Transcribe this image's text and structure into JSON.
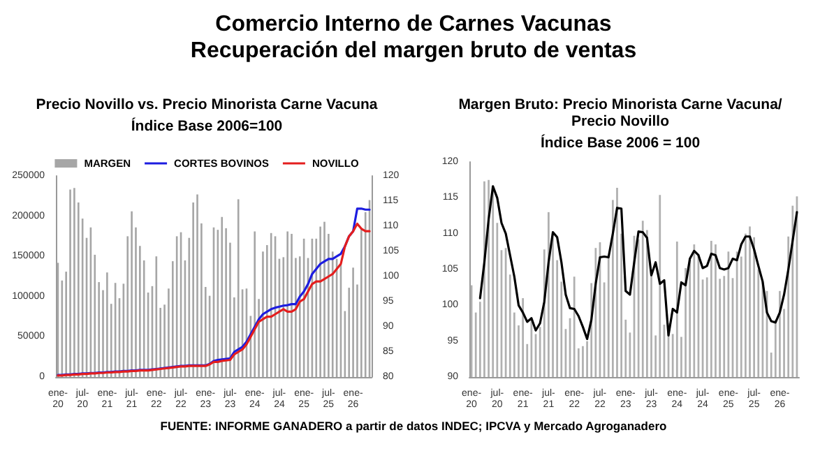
{
  "chart_data": [
    {
      "type": "bar",
      "title": "Precio Novillo vs. Precio Minorista Carne Vacuna",
      "subtitle": "Índice Base 2006=100",
      "annotations": [
        "Comercio Interno de Carnes Vacunas",
        "Recuperación del margen bruto de ventas"
      ],
      "categories": [
        "ene-20",
        null,
        null,
        null,
        null,
        null,
        "jul-20",
        null,
        null,
        null,
        null,
        null,
        "ene-21",
        null,
        null,
        null,
        null,
        null,
        "jul-21",
        null,
        null,
        null,
        null,
        null,
        "ene-22",
        null,
        null,
        null,
        null,
        null,
        "jul-22",
        null,
        null,
        null,
        null,
        null,
        "ene-23",
        null,
        null,
        null,
        null,
        null,
        "jul-23",
        null,
        null,
        null,
        null,
        null,
        "ene-24",
        null,
        null,
        null,
        null,
        null,
        "jul-24",
        null,
        null,
        null,
        null,
        null,
        "ene-25",
        null,
        null,
        null,
        null,
        null,
        "jul-25",
        null,
        null,
        null,
        null,
        null,
        "ene-26",
        null,
        null,
        null,
        null
      ],
      "series": [
        {
          "name": "MARGEN",
          "color": "#a6a6a6",
          "values": [
            142000,
            120000,
            131000,
            233000,
            235000,
            217000,
            197000,
            173000,
            186000,
            152000,
            118000,
            108000,
            130000,
            91000,
            117000,
            98000,
            116000,
            175000,
            206000,
            186000,
            163000,
            145000,
            105000,
            113000,
            150000,
            86000,
            90000,
            110000,
            144000,
            175000,
            180000,
            145000,
            173000,
            217000,
            227000,
            191000,
            112000,
            101000,
            186000,
            183000,
            199000,
            185000,
            167000,
            99000,
            221000,
            109000,
            110000,
            76000,
            181000,
            97000,
            156000,
            164000,
            179000,
            175000,
            147000,
            149000,
            181000,
            178000,
            148000,
            150000,
            172000,
            148000,
            172000,
            172000,
            187000,
            193000,
            178000,
            156000,
            147000,
            140000,
            82000,
            111000,
            136000,
            115000,
            185000,
            205000,
            220000
          ]
        },
        {
          "name": "CORTES BOVINOS",
          "type": "line",
          "axis": "y2",
          "color": "#1c1ce0",
          "values": [
            80.4,
            80.4,
            80.5,
            80.5,
            80.6,
            80.6,
            80.7,
            80.7,
            80.8,
            80.8,
            80.9,
            80.9,
            81.0,
            81.0,
            81.1,
            81.1,
            81.2,
            81.2,
            81.3,
            81.3,
            81.4,
            81.4,
            81.4,
            81.5,
            81.6,
            81.7,
            81.8,
            81.9,
            82.0,
            82.1,
            82.2,
            82.2,
            82.3,
            82.3,
            82.3,
            82.3,
            82.3,
            82.6,
            83.2,
            83.4,
            83.5,
            83.6,
            83.7,
            85.0,
            85.5,
            86.0,
            87.0,
            88.5,
            90.0,
            91.5,
            92.5,
            93.0,
            93.5,
            93.8,
            94.0,
            94.2,
            94.3,
            94.5,
            94.5,
            96.0,
            97.0,
            98.5,
            100.5,
            101.5,
            102.5,
            103.0,
            103.5,
            103.5,
            104.0,
            104.5,
            106.0,
            108.0,
            109.0,
            113.5,
            113.5,
            113.3,
            113.3
          ]
        },
        {
          "name": "NOVILLO",
          "type": "line",
          "axis": "y2",
          "color": "#e41e1e",
          "values": [
            80.3,
            80.3,
            80.4,
            80.4,
            80.5,
            80.5,
            80.6,
            80.6,
            80.7,
            80.7,
            80.8,
            80.8,
            80.9,
            80.9,
            81.0,
            81.0,
            81.1,
            81.1,
            81.2,
            81.2,
            81.3,
            81.3,
            81.3,
            81.4,
            81.5,
            81.6,
            81.7,
            81.8,
            81.9,
            82.0,
            82.1,
            82.1,
            82.2,
            82.2,
            82.2,
            82.2,
            82.2,
            82.5,
            83.0,
            83.0,
            83.2,
            83.3,
            83.4,
            84.5,
            85.0,
            85.5,
            86.5,
            88.0,
            89.5,
            91.0,
            91.5,
            92.0,
            92.0,
            92.5,
            93.0,
            93.5,
            93.0,
            93.0,
            93.5,
            95.0,
            95.5,
            97.0,
            98.5,
            99.0,
            99.0,
            99.5,
            100.0,
            100.5,
            101.5,
            102.5,
            106.0,
            108.0,
            109.0,
            110.5,
            109.5,
            109.0,
            109.0
          ]
        }
      ],
      "ylim": [
        0,
        250000
      ],
      "yticks": [
        0,
        50000,
        100000,
        150000,
        200000,
        250000
      ],
      "y2lim": [
        80,
        120
      ],
      "y2ticks": [
        80,
        85,
        90,
        95,
        100,
        105,
        110,
        115,
        120
      ],
      "legend": "top",
      "grid": false,
      "marker": "none",
      "line_style": "solid"
    },
    {
      "type": "bar",
      "title": "Margen Bruto: Precio Minorista Carne Vacuna/Precio Novillo",
      "subtitle": "Índice Base 2006 = 100",
      "annotations": [
        "FUENTE: INFORME GANADERO a partir de datos INDEC; IPCVA y Mercado Agroganadero"
      ],
      "categories": [
        "ene-20",
        null,
        null,
        null,
        null,
        null,
        "jul-20",
        null,
        null,
        null,
        null,
        null,
        "ene-21",
        null,
        null,
        null,
        null,
        null,
        "jul-21",
        null,
        null,
        null,
        null,
        null,
        "ene-22",
        null,
        null,
        null,
        null,
        null,
        "jul-22",
        null,
        null,
        null,
        null,
        null,
        "ene-23",
        null,
        null,
        null,
        null,
        null,
        "jul-23",
        null,
        null,
        null,
        null,
        null,
        "ene-24",
        null,
        null,
        null,
        null,
        null,
        "jul-24",
        null,
        null,
        null,
        null,
        null,
        "ene-25",
        null,
        null,
        null,
        null,
        null,
        "jul-25",
        null,
        null,
        null,
        null,
        null,
        "ene-26",
        null,
        null,
        null,
        null
      ],
      "series": [
        {
          "color": "#b0b0b0",
          "values": [
            102.8,
            99,
            100.5,
            117.3,
            117.5,
            116.5,
            111.5,
            107.7,
            108,
            104.3,
            99,
            97.2,
            101,
            94.6,
            98,
            96,
            97,
            107.8,
            113,
            110,
            106.3,
            103.3,
            96.7,
            98.2,
            104,
            94,
            94.3,
            95,
            103.1,
            108,
            108.8,
            103.2,
            107,
            114.7,
            116.4,
            110,
            98,
            96.2,
            109.7,
            109.2,
            111.8,
            110.5,
            105,
            95.8,
            115.4,
            97.3,
            97.5,
            96,
            108.9,
            95.6,
            105.2,
            106.3,
            108.5,
            107,
            103.6,
            103.9,
            109,
            108.5,
            103.7,
            104.1,
            107.5,
            103.8,
            107.5,
            106.8,
            110,
            111,
            109.5,
            105,
            103.3,
            102,
            93.4,
            98,
            102,
            99.5,
            109.6,
            113.9,
            115.2
          ]
        },
        {
          "type": "line",
          "color": "#000000",
          "values": [
            null,
            null,
            101,
            106,
            112,
            116.6,
            115,
            111.5,
            110,
            107,
            104,
            100,
            99,
            97.7,
            98.2,
            96.5,
            97.5,
            100.5,
            106,
            110.2,
            109.5,
            106,
            101.5,
            99.6,
            99.5,
            98.5,
            97,
            95.3,
            98,
            103,
            106.7,
            106.8,
            106.7,
            110,
            113.6,
            113.5,
            102,
            101.5,
            106,
            110.3,
            110.2,
            109.4,
            104.2,
            106,
            103,
            103.5,
            95.8,
            99.5,
            99,
            103.2,
            102.8,
            106.5,
            107.6,
            107,
            105.2,
            105.5,
            107.2,
            107,
            105.2,
            105,
            105.2,
            106.5,
            106.3,
            108.5,
            109.6,
            109.6,
            107.8,
            105.5,
            103.3,
            99,
            97.8,
            97.6,
            99,
            101.5,
            105,
            109,
            113
          ]
        }
      ],
      "ylim": [
        90,
        120
      ],
      "yticks": [
        90,
        95,
        100,
        105,
        110,
        115,
        120
      ],
      "legend": false,
      "grid": false,
      "marker": "none",
      "line_style": "solid"
    }
  ]
}
